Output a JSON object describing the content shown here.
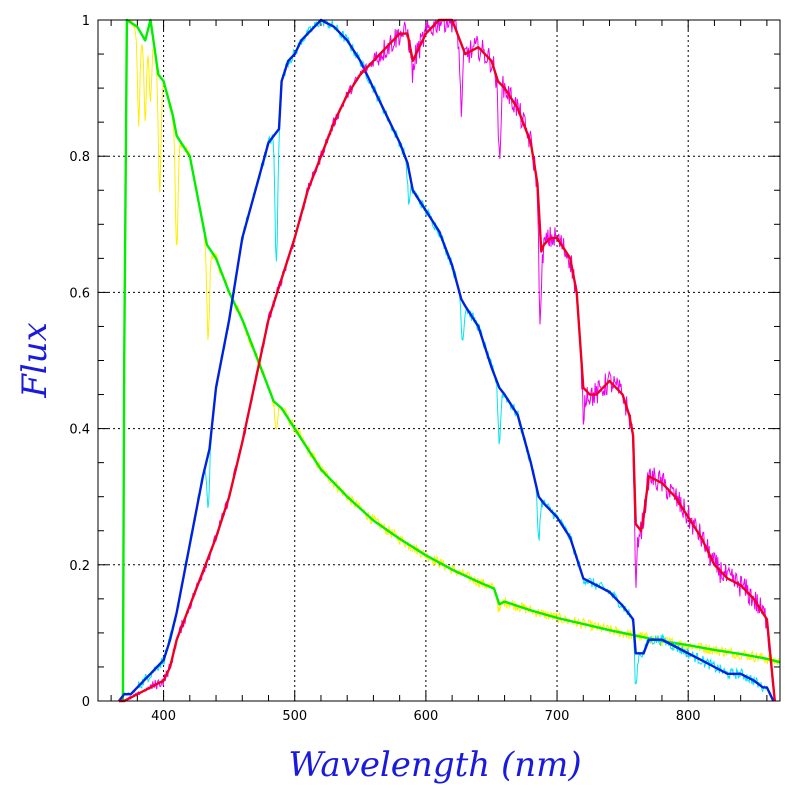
{
  "chart_data": {
    "type": "line",
    "title": "",
    "xlabel": "Wavelength (nm)",
    "ylabel": "Flux",
    "xlim": [
      350,
      870
    ],
    "ylim": [
      0,
      1
    ],
    "x_ticks": [
      400,
      500,
      600,
      700,
      800
    ],
    "y_ticks": [
      0,
      0.2,
      0.4,
      0.6,
      0.8,
      1
    ],
    "y_tick_labels": [
      "0",
      "0.2",
      "0.4",
      "0.6",
      "0.8",
      "1"
    ],
    "grid": true,
    "legend": "none",
    "series": [
      {
        "color": "#00ee00",
        "noise_color": "#ffee00",
        "x": [
          369,
          370,
          372,
          380,
          386,
          390,
          393,
          396,
          400,
          407,
          410,
          420,
          428,
          433,
          440,
          450,
          460,
          470,
          480,
          484,
          490,
          500,
          510,
          520,
          540,
          560,
          580,
          600,
          620,
          640,
          652,
          656,
          660,
          680,
          700,
          720,
          740,
          760,
          780,
          800,
          820,
          840,
          860,
          870
        ],
        "values": [
          0.0,
          0.5,
          1.0,
          0.99,
          0.97,
          1.0,
          0.96,
          0.92,
          0.91,
          0.86,
          0.83,
          0.8,
          0.72,
          0.67,
          0.65,
          0.6,
          0.56,
          0.51,
          0.46,
          0.44,
          0.43,
          0.4,
          0.37,
          0.34,
          0.3,
          0.265,
          0.238,
          0.214,
          0.193,
          0.175,
          0.165,
          0.142,
          0.146,
          0.133,
          0.122,
          0.113,
          0.104,
          0.096,
          0.088,
          0.082,
          0.075,
          0.069,
          0.062,
          0.057
        ],
        "dips": [
          [
            381,
            0.85
          ],
          [
            386,
            0.85
          ],
          [
            390,
            0.88
          ],
          [
            397,
            0.75
          ],
          [
            410,
            0.66
          ],
          [
            434,
            0.53
          ],
          [
            486,
            0.4
          ],
          [
            656,
            0.13
          ]
        ]
      },
      {
        "color": "#0022dd",
        "noise_color": "#00e5ee",
        "x": [
          366,
          370,
          375,
          380,
          385,
          390,
          395,
          400,
          405,
          410,
          420,
          430,
          435,
          440,
          450,
          460,
          470,
          480,
          488,
          490,
          495,
          500,
          505,
          510,
          515,
          520,
          530,
          540,
          550,
          560,
          570,
          580,
          586,
          590,
          600,
          610,
          620,
          627,
          630,
          640,
          650,
          656,
          660,
          670,
          680,
          686,
          690,
          700,
          710,
          715,
          720,
          730,
          740,
          750,
          758,
          760,
          766,
          770,
          780,
          790,
          800,
          810,
          820,
          830,
          840,
          850,
          857,
          860,
          865
        ],
        "values": [
          0.0,
          0.01,
          0.01,
          0.02,
          0.03,
          0.04,
          0.05,
          0.06,
          0.09,
          0.13,
          0.23,
          0.33,
          0.37,
          0.46,
          0.56,
          0.68,
          0.75,
          0.82,
          0.84,
          0.91,
          0.94,
          0.95,
          0.97,
          0.98,
          0.99,
          1.0,
          0.99,
          0.97,
          0.94,
          0.9,
          0.86,
          0.82,
          0.79,
          0.75,
          0.72,
          0.69,
          0.64,
          0.59,
          0.58,
          0.55,
          0.49,
          0.46,
          0.45,
          0.42,
          0.35,
          0.3,
          0.29,
          0.27,
          0.24,
          0.21,
          0.18,
          0.17,
          0.16,
          0.14,
          0.12,
          0.07,
          0.07,
          0.09,
          0.09,
          0.08,
          0.07,
          0.06,
          0.05,
          0.04,
          0.04,
          0.03,
          0.02,
          0.02,
          0.0
        ],
        "dips": [
          [
            486,
            0.64
          ],
          [
            434,
            0.29
          ],
          [
            656,
            0.38
          ],
          [
            686,
            0.24
          ],
          [
            760,
            0.02
          ],
          [
            587,
            0.73
          ],
          [
            628,
            0.53
          ]
        ]
      },
      {
        "color": "#ee0022",
        "noise_color": "#ee00ee",
        "x": [
          366,
          370,
          380,
          390,
          400,
          405,
          410,
          420,
          430,
          440,
          450,
          460,
          470,
          480,
          490,
          500,
          510,
          520,
          530,
          540,
          550,
          560,
          570,
          580,
          586,
          590,
          595,
          600,
          610,
          620,
          630,
          640,
          650,
          655,
          660,
          670,
          680,
          685,
          688,
          690,
          695,
          700,
          710,
          715,
          720,
          725,
          730,
          740,
          750,
          755,
          758,
          760,
          764,
          766,
          770,
          780,
          790,
          800,
          810,
          820,
          830,
          840,
          850,
          860,
          866
        ],
        "values": [
          0.0,
          0.0,
          0.01,
          0.02,
          0.03,
          0.05,
          0.09,
          0.14,
          0.19,
          0.24,
          0.3,
          0.38,
          0.47,
          0.56,
          0.62,
          0.68,
          0.75,
          0.8,
          0.85,
          0.89,
          0.92,
          0.94,
          0.96,
          0.98,
          0.98,
          0.94,
          0.96,
          0.98,
          1.0,
          1.0,
          0.95,
          0.96,
          0.94,
          0.91,
          0.9,
          0.87,
          0.82,
          0.76,
          0.66,
          0.67,
          0.68,
          0.68,
          0.65,
          0.6,
          0.46,
          0.45,
          0.45,
          0.47,
          0.45,
          0.42,
          0.39,
          0.26,
          0.25,
          0.27,
          0.33,
          0.32,
          0.3,
          0.27,
          0.24,
          0.2,
          0.18,
          0.17,
          0.15,
          0.12,
          0.0
        ],
        "dips": [
          [
            687,
            0.57
          ],
          [
            656,
            0.8
          ],
          [
            590,
            0.92
          ],
          [
            760,
            0.17
          ],
          [
            627,
            0.87
          ],
          [
            720,
            0.42
          ]
        ]
      }
    ]
  }
}
